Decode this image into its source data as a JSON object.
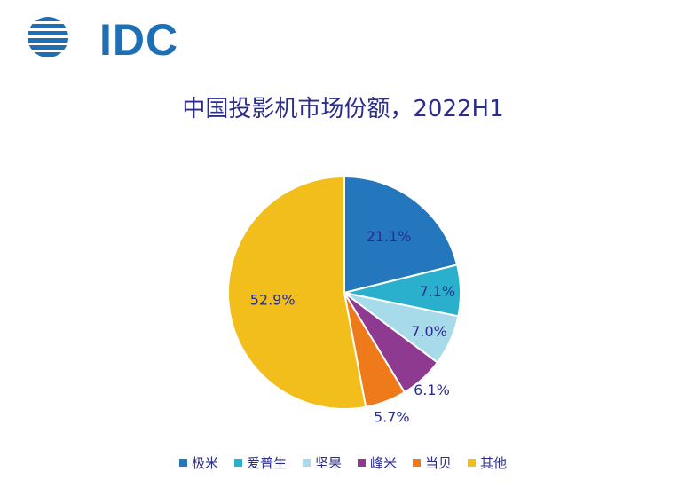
{
  "logo": {
    "text": "IDC"
  },
  "chart_data": {
    "type": "pie",
    "title": "中国投影机市场份额，2022H1",
    "categories": [
      "极米",
      "爱普生",
      "坚果",
      "峰米",
      "当贝",
      "其他"
    ],
    "values": [
      21.1,
      7.1,
      7.0,
      6.1,
      5.7,
      52.9
    ],
    "labels": [
      "21.1%",
      "7.1%",
      "7.0%",
      "6.1%",
      "5.7%",
      "52.9%"
    ],
    "colors": [
      "#2477bd",
      "#2ab0cc",
      "#a7dbe9",
      "#8e3a91",
      "#ef7a1a",
      "#f1be1c"
    ],
    "legend_position": "bottom"
  }
}
